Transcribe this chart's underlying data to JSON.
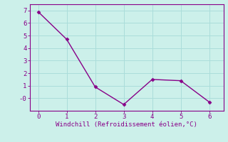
{
  "x": [
    0,
    1,
    2,
    3,
    4,
    5,
    6
  ],
  "y": [
    6.9,
    4.7,
    0.9,
    -0.5,
    1.5,
    1.4,
    -0.3
  ],
  "line_color": "#880088",
  "marker": "D",
  "marker_size": 2.5,
  "line_width": 1.0,
  "xlabel": "Windchill (Refroidissement éolien,°C)",
  "xlabel_color": "#880088",
  "bg_color": "#ccf0ea",
  "grid_color": "#aaddda",
  "tick_color": "#880088",
  "spine_color": "#880088",
  "xlim": [
    -0.3,
    6.5
  ],
  "ylim": [
    -1.0,
    7.5
  ],
  "yticks": [
    0,
    1,
    2,
    3,
    4,
    5,
    6,
    7
  ],
  "ytick_labels": [
    "-0",
    "1",
    "2",
    "3",
    "4",
    "5",
    "6",
    "7"
  ],
  "xticks": [
    0,
    1,
    2,
    3,
    4,
    5,
    6
  ],
  "font_size": 6.5
}
